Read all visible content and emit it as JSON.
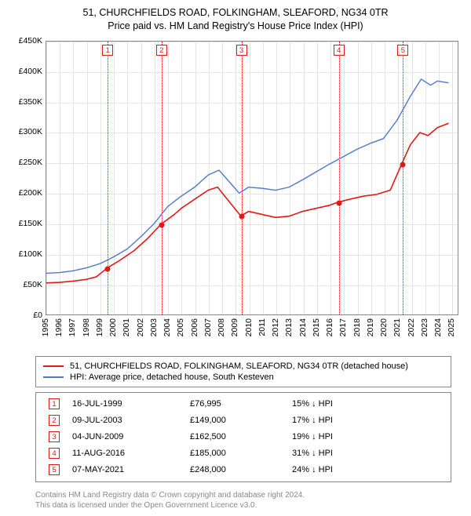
{
  "title": {
    "line1": "51, CHURCHFIELDS ROAD, FOLKINGHAM, SLEAFORD, NG34 0TR",
    "line2": "Price paid vs. HM Land Registry's House Price Index (HPI)"
  },
  "chart": {
    "type": "line",
    "background_color": "#ffffff",
    "grid_color": "#e4e4e4",
    "axis_color": "#888888",
    "ylim": [
      0,
      450000
    ],
    "ytick_step": 50000,
    "yticks": [
      "£0",
      "£50K",
      "£100K",
      "£150K",
      "£200K",
      "£250K",
      "£300K",
      "£350K",
      "£400K",
      "£450K"
    ],
    "xlim": [
      1995,
      2025.5
    ],
    "xticks": [
      1995,
      1996,
      1997,
      1998,
      1999,
      2000,
      2001,
      2002,
      2003,
      2004,
      2005,
      2006,
      2007,
      2008,
      2009,
      2010,
      2011,
      2012,
      2013,
      2014,
      2015,
      2016,
      2017,
      2018,
      2019,
      2020,
      2021,
      2022,
      2023,
      2024,
      2025
    ],
    "label_fontsize": 10.5,
    "title_fontsize": 12.5,
    "series": [
      {
        "name": "prop",
        "label": "51, CHURCHFIELDS ROAD, FOLKINGHAM, SLEAFORD, NG34 0TR (detached house)",
        "color": "#e01919",
        "line_width": 1.6,
        "points": [
          [
            1995,
            52000
          ],
          [
            1996,
            53000
          ],
          [
            1997,
            55000
          ],
          [
            1998,
            58000
          ],
          [
            1998.7,
            62000
          ],
          [
            1999.54,
            76995
          ],
          [
            2000.5,
            90000
          ],
          [
            2001.5,
            105000
          ],
          [
            2002.5,
            125000
          ],
          [
            2003.52,
            149000
          ],
          [
            2004.5,
            165000
          ],
          [
            2005,
            175000
          ],
          [
            2006,
            190000
          ],
          [
            2007,
            205000
          ],
          [
            2007.7,
            210000
          ],
          [
            2008.6,
            185000
          ],
          [
            2009.42,
            162500
          ],
          [
            2010,
            170000
          ],
          [
            2011,
            165000
          ],
          [
            2012,
            160000
          ],
          [
            2013,
            162000
          ],
          [
            2014,
            170000
          ],
          [
            2015,
            175000
          ],
          [
            2016,
            180000
          ],
          [
            2016.61,
            185000
          ],
          [
            2017.5,
            190000
          ],
          [
            2018.5,
            195000
          ],
          [
            2019.5,
            198000
          ],
          [
            2020.5,
            205000
          ],
          [
            2021.35,
            248000
          ],
          [
            2022,
            280000
          ],
          [
            2022.7,
            300000
          ],
          [
            2023.3,
            295000
          ],
          [
            2024,
            308000
          ],
          [
            2024.8,
            315000
          ]
        ]
      },
      {
        "name": "hpi",
        "label": "HPI: Average price, detached house, South Kesteven",
        "color": "#5078c8",
        "line_width": 1.4,
        "points": [
          [
            1995,
            68000
          ],
          [
            1996,
            69000
          ],
          [
            1997,
            72000
          ],
          [
            1998,
            77000
          ],
          [
            1999,
            84000
          ],
          [
            2000,
            95000
          ],
          [
            2001,
            108000
          ],
          [
            2002,
            128000
          ],
          [
            2003,
            150000
          ],
          [
            2004,
            178000
          ],
          [
            2005,
            195000
          ],
          [
            2006,
            210000
          ],
          [
            2007,
            230000
          ],
          [
            2007.8,
            238000
          ],
          [
            2008.6,
            218000
          ],
          [
            2009.3,
            200000
          ],
          [
            2010,
            210000
          ],
          [
            2011,
            208000
          ],
          [
            2012,
            205000
          ],
          [
            2013,
            210000
          ],
          [
            2014,
            222000
          ],
          [
            2015,
            235000
          ],
          [
            2016,
            248000
          ],
          [
            2017,
            260000
          ],
          [
            2018,
            272000
          ],
          [
            2019,
            282000
          ],
          [
            2020,
            290000
          ],
          [
            2021,
            320000
          ],
          [
            2022,
            360000
          ],
          [
            2022.8,
            388000
          ],
          [
            2023.5,
            378000
          ],
          [
            2024,
            385000
          ],
          [
            2024.8,
            382000
          ]
        ]
      }
    ],
    "markers": [
      {
        "n": "1",
        "x": 1999.54,
        "y": 76995
      },
      {
        "n": "2",
        "x": 2003.52,
        "y": 149000
      },
      {
        "n": "3",
        "x": 2009.42,
        "y": 162500
      },
      {
        "n": "4",
        "x": 2016.61,
        "y": 185000
      },
      {
        "n": "5",
        "x": 2021.35,
        "y": 248000
      }
    ],
    "marker_line_color": "#e01919",
    "marker_dot_color": "#e01919"
  },
  "legend": {
    "rows": [
      {
        "color": "#e01919",
        "label": "51, CHURCHFIELDS ROAD, FOLKINGHAM, SLEAFORD, NG34 0TR (detached house)"
      },
      {
        "color": "#5078c8",
        "label": "HPI: Average price, detached house, South Kesteven"
      }
    ]
  },
  "sales": [
    {
      "n": "1",
      "date": "16-JUL-1999",
      "price": "£76,995",
      "delta": "15% ↓ HPI"
    },
    {
      "n": "2",
      "date": "09-JUL-2003",
      "price": "£149,000",
      "delta": "17% ↓ HPI"
    },
    {
      "n": "3",
      "date": "04-JUN-2009",
      "price": "£162,500",
      "delta": "19% ↓ HPI"
    },
    {
      "n": "4",
      "date": "11-AUG-2016",
      "price": "£185,000",
      "delta": "31% ↓ HPI"
    },
    {
      "n": "5",
      "date": "07-MAY-2021",
      "price": "£248,000",
      "delta": "24% ↓ HPI"
    }
  ],
  "footer": {
    "line1": "Contains HM Land Registry data © Crown copyright and database right 2024.",
    "line2": "This data is licensed under the Open Government Licence v3.0."
  }
}
